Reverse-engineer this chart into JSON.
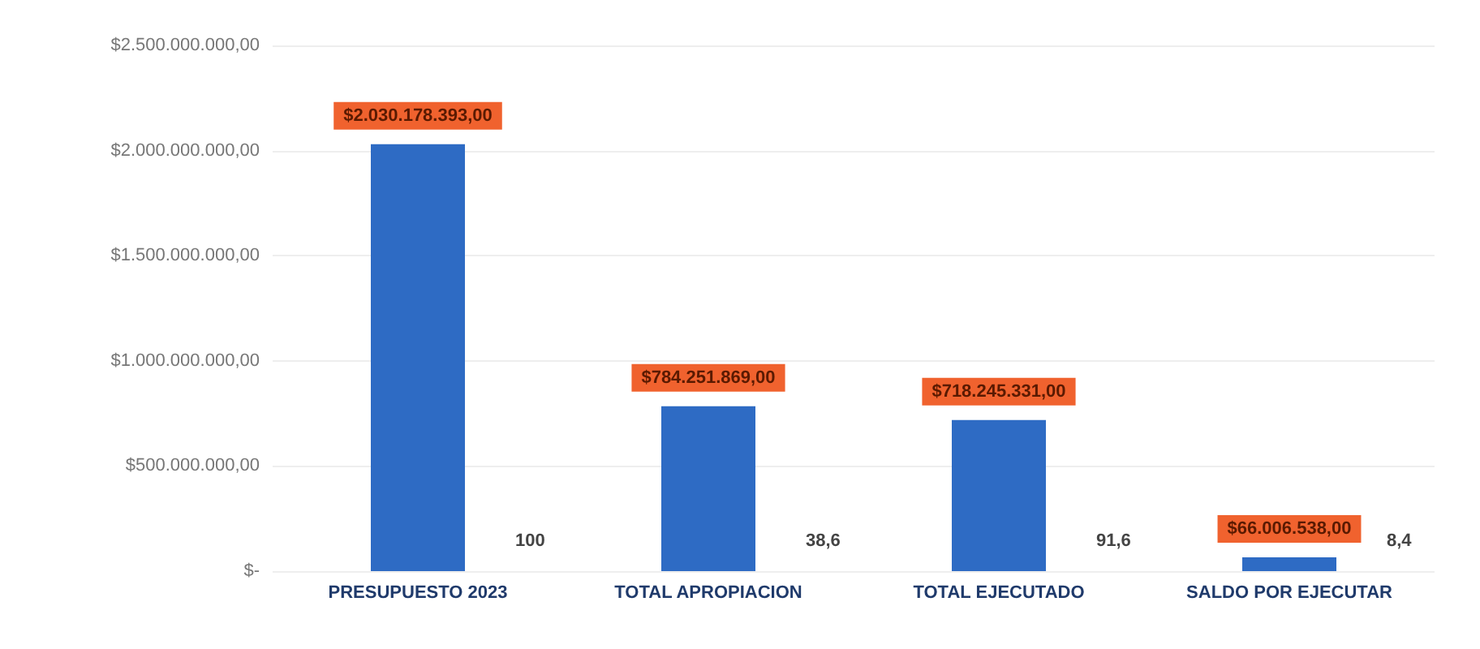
{
  "chart_data": {
    "type": "bar",
    "categories": [
      "PRESUPUESTO 2023",
      "TOTAL APROPIACION",
      "TOTAL EJECUTADO",
      "SALDO POR EJECUTAR"
    ],
    "series": [
      {
        "color": "#2e6bc4",
        "values": [
          2030178393,
          784251869,
          718245331,
          66006538
        ],
        "value_labels": [
          "$2.030.178.393,00",
          "$784.251.869,00",
          "$718.245.331,00",
          "$66.006.538,00"
        ]
      }
    ],
    "annotations": [
      "100",
      "38,6",
      "91,6",
      "8,4"
    ],
    "ylim": [
      0,
      2500000000
    ],
    "yticks": [
      {
        "value": 0,
        "label": "$-"
      },
      {
        "value": 500000000,
        "label": "$500.000.000,00"
      },
      {
        "value": 1000000000,
        "label": "$1.000.000.000,00"
      },
      {
        "value": 1500000000,
        "label": "$1.500.000.000,00"
      },
      {
        "value": 2000000000,
        "label": "$2.000.000.000,00"
      },
      {
        "value": 2500000000,
        "label": "$2.500.000.000,00"
      }
    ],
    "grid": "y"
  }
}
